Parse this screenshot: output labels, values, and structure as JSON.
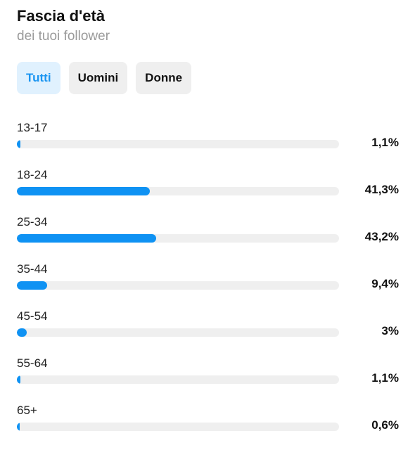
{
  "header": {
    "title": "Fascia d'età",
    "subtitle": "dei tuoi follower"
  },
  "tabs": [
    {
      "label": "Tutti",
      "active": true
    },
    {
      "label": "Uomini",
      "active": false
    },
    {
      "label": "Donne",
      "active": false
    }
  ],
  "accent_color": "#0f92f3",
  "age_ranges": [
    {
      "label": "13-17",
      "percent_label": "1,1%",
      "percent": 1.1
    },
    {
      "label": "18-24",
      "percent_label": "41,3%",
      "percent": 41.3
    },
    {
      "label": "25-34",
      "percent_label": "43,2%",
      "percent": 43.2
    },
    {
      "label": "35-44",
      "percent_label": "9,4%",
      "percent": 9.4
    },
    {
      "label": "45-54",
      "percent_label": "3%",
      "percent": 3
    },
    {
      "label": "55-64",
      "percent_label": "1,1%",
      "percent": 1.1
    },
    {
      "label": "65+",
      "percent_label": "0,6%",
      "percent": 0.6
    }
  ]
}
